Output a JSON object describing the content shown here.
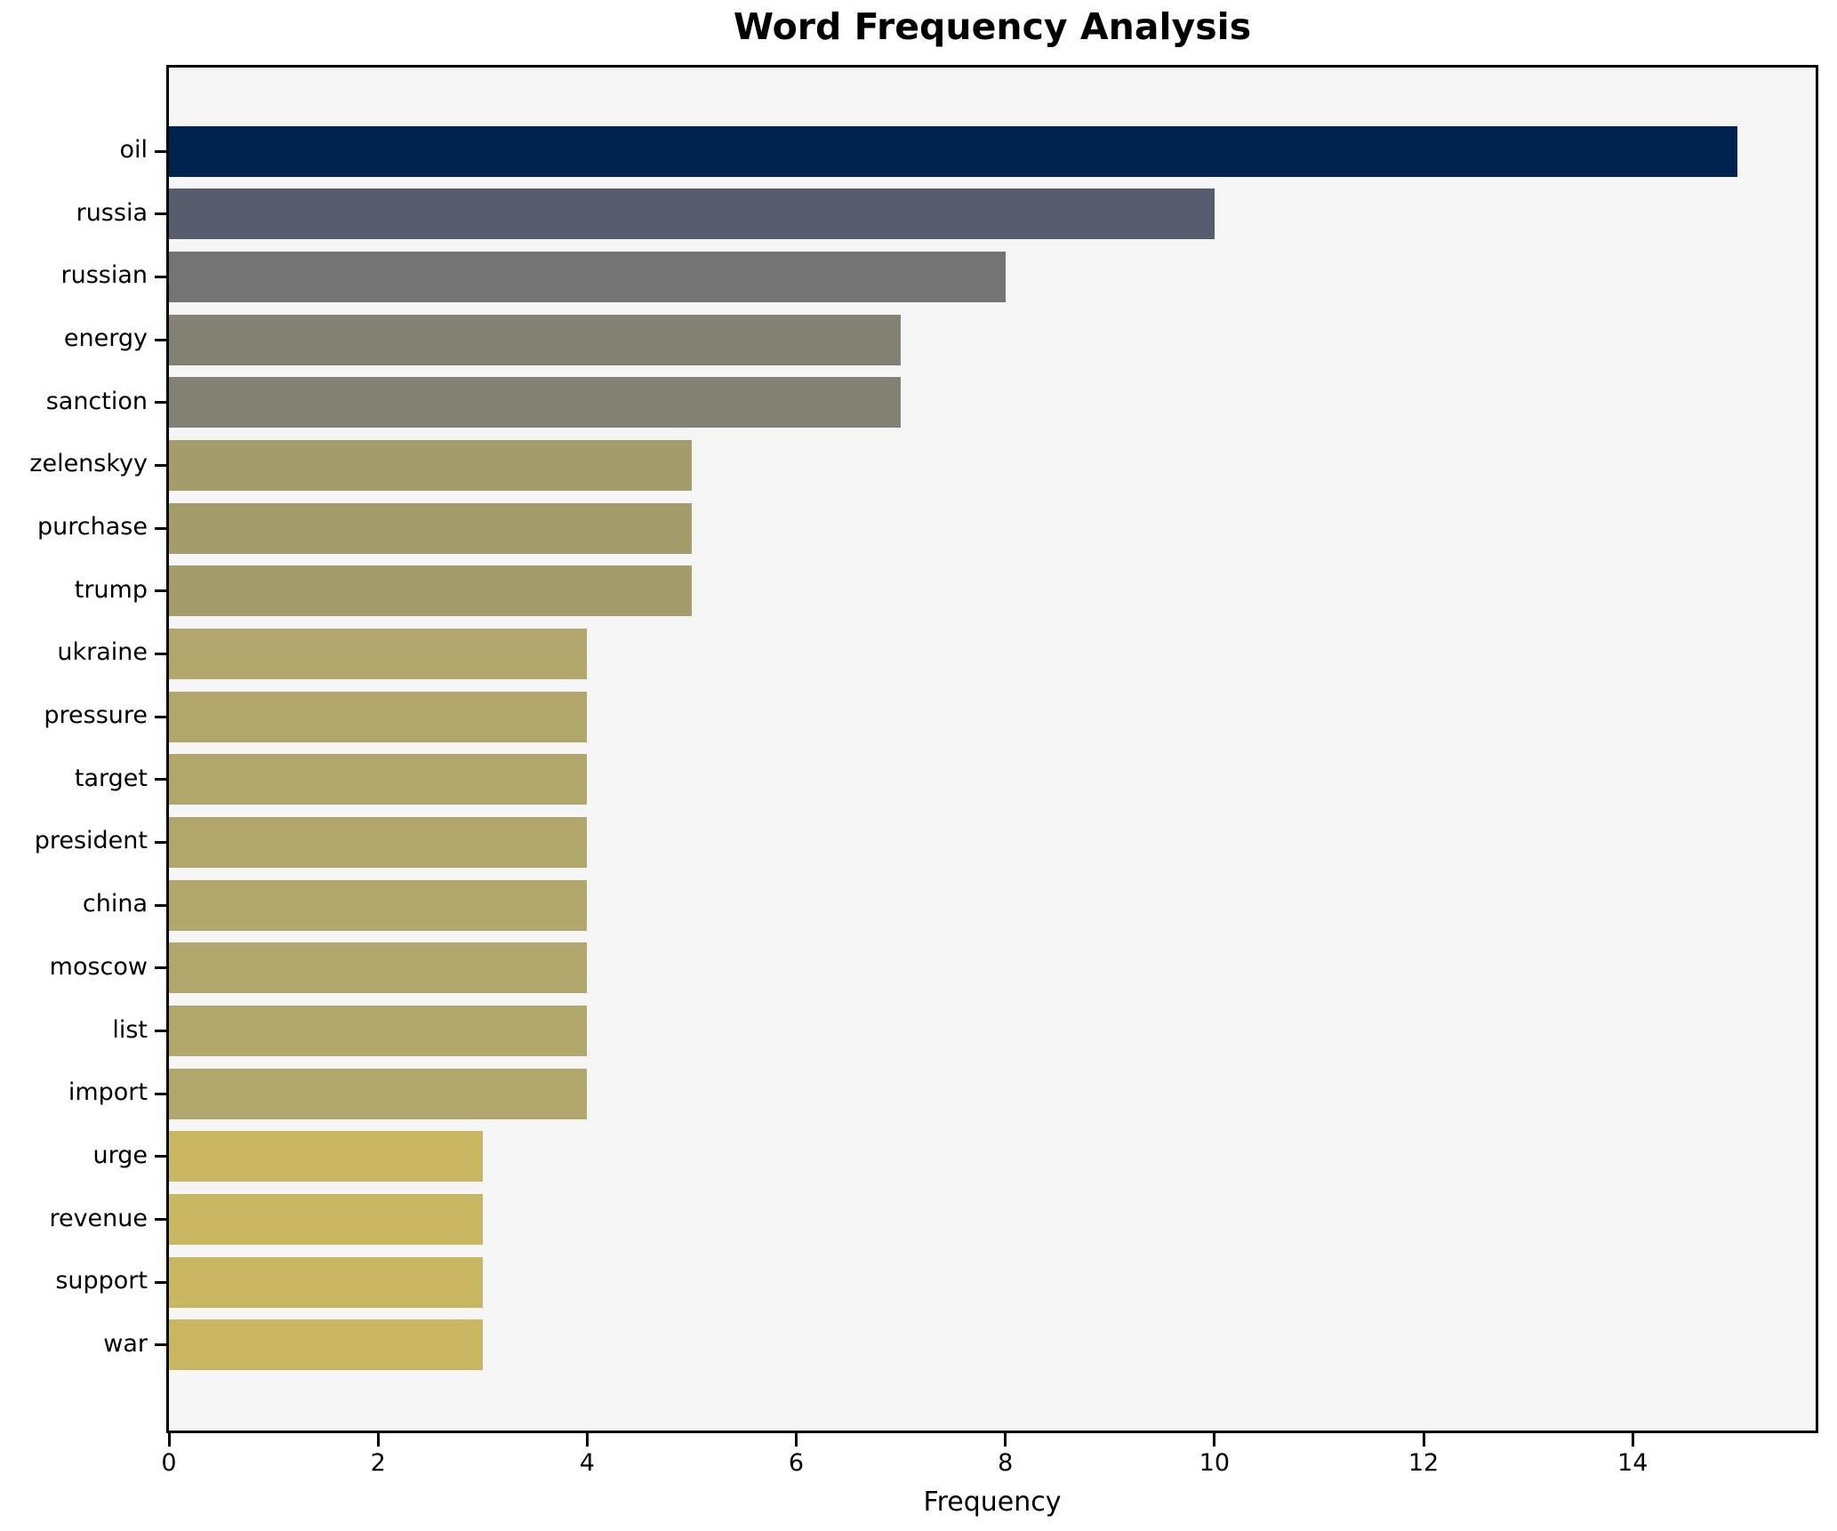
{
  "figure": {
    "title": "Word Frequency Analysis",
    "background_color": "#ffffff",
    "plot_background_color": "#f5f5f6",
    "spine_color": "#000000"
  },
  "chart_data": {
    "type": "bar",
    "orientation": "horizontal",
    "title": "Word Frequency Analysis",
    "xlabel": "Frequency",
    "ylabel": "",
    "categories": [
      "oil",
      "russia",
      "russian",
      "energy",
      "sanction",
      "zelenskyy",
      "purchase",
      "trump",
      "ukraine",
      "pressure",
      "target",
      "president",
      "china",
      "moscow",
      "list",
      "import",
      "urge",
      "revenue",
      "support",
      "war"
    ],
    "values": [
      15,
      10,
      8,
      7,
      7,
      5,
      5,
      5,
      4,
      4,
      4,
      4,
      4,
      4,
      4,
      4,
      3,
      3,
      3,
      3
    ],
    "bar_colors": [
      "#00224e",
      "#575d6d",
      "#737373",
      "#838173",
      "#838173",
      "#a49c6b",
      "#a49c6b",
      "#a49c6b",
      "#b1a76c",
      "#b1a76c",
      "#b1a76c",
      "#b1a76c",
      "#b1a76c",
      "#b1a76c",
      "#b1a76c",
      "#b1a76c",
      "#c8b660",
      "#c8b660",
      "#c8b660",
      "#c8b660"
    ],
    "xlim": [
      0,
      15.75
    ],
    "xticks": [
      0,
      2,
      4,
      6,
      8,
      10,
      12,
      14
    ],
    "grid": false,
    "legend": null,
    "colormap": "cividis"
  }
}
